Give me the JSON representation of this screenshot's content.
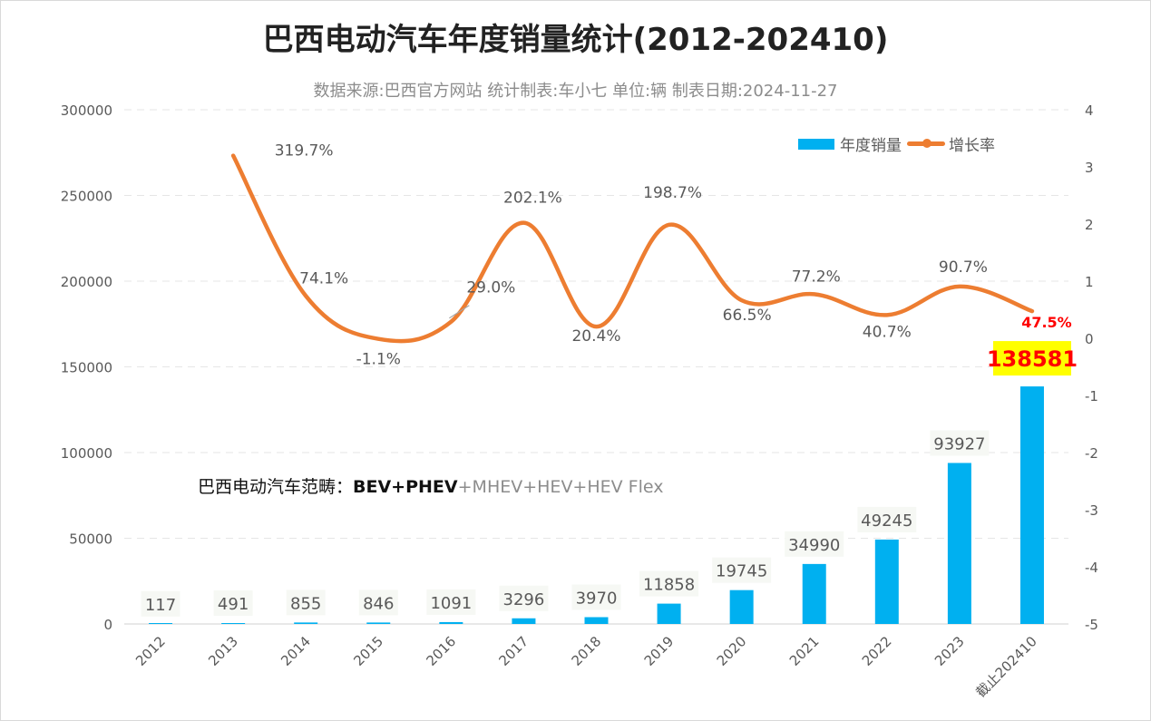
{
  "chart_data": {
    "type": "bar+line",
    "title": "巴西电动汽车年度销量统计(2012-202410)",
    "subtitle": "数据来源:巴西官方网站  统计制表:车小七   单位:辆  制表日期:2024-11-27",
    "categories": [
      "2012",
      "2013",
      "2014",
      "2015",
      "2016",
      "2017",
      "2018",
      "2019",
      "2020",
      "2021",
      "2022",
      "2023",
      "截止202410"
    ],
    "series": [
      {
        "name": "年度销量",
        "type": "bar",
        "axis": "left",
        "color": "#00b0f0",
        "values": [
          117,
          491,
          855,
          846,
          1091,
          3296,
          3970,
          11858,
          19745,
          34990,
          49245,
          93927,
          138581
        ],
        "labels": [
          "117",
          "491",
          "855",
          "846",
          "1091",
          "3296",
          "3970",
          "11858",
          "19745",
          "34990",
          "49245",
          "93927",
          "138581"
        ]
      },
      {
        "name": "增长率",
        "type": "line",
        "axis": "right",
        "color": "#ed7d31",
        "values": [
          null,
          3.197,
          0.741,
          -0.011,
          0.29,
          2.021,
          0.204,
          1.987,
          0.665,
          0.772,
          0.407,
          0.907,
          0.475
        ],
        "labels": [
          "",
          "319.7%",
          "74.1%",
          "-1.1%",
          "29.0%",
          "202.1%",
          "20.4%",
          "198.7%",
          "66.5%",
          "77.2%",
          "40.7%",
          "90.7%",
          "47.5%"
        ]
      }
    ],
    "left_axis": {
      "min": 0,
      "max": 300000,
      "ticks": [
        "0",
        "50000",
        "100000",
        "150000",
        "200000",
        "250000",
        "300000"
      ]
    },
    "right_axis": {
      "min": -5,
      "max": 4,
      "ticks": [
        "-5",
        "-4",
        "-3",
        "-2",
        "-1",
        "0",
        "1",
        "2",
        "3",
        "4"
      ]
    },
    "grid": true,
    "legend_position": "top-right",
    "highlight_color": "#ff0000",
    "highlight_bg": "#ffff00"
  },
  "annotation": {
    "prefix": "巴西电动汽车范畴：",
    "bold": "BEV+PHEV",
    "rest": "+MHEV+HEV+HEV Flex"
  }
}
